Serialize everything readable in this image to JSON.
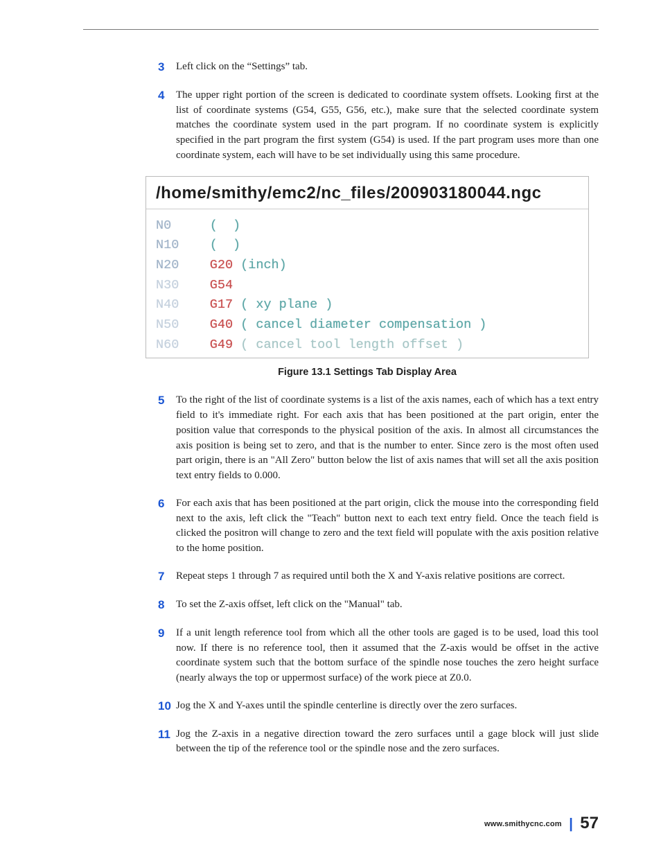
{
  "steps_top": [
    {
      "num": "3",
      "text": "Left click on the “Settings” tab."
    },
    {
      "num": "4",
      "text": "The upper right portion of the screen is dedicated to coordinate system offsets. Looking first at the list of coordinate systems (G54, G55, G56, etc.), make sure that the selected coordinate system matches the coordinate system used in the part program. If no coordinate system is explicitly specified in the part program the first system (G54) is used. If the part program uses more than one coordinate system, each will have to be set individually using this same procedure."
    }
  ],
  "figure": {
    "path_title": "/home/smithy/emc2/nc_files/200903180044.ngc",
    "caption": "Figure 13.1 Settings Tab Display Area",
    "code": [
      {
        "n": "N0",
        "n_class": "nline",
        "g": "",
        "c": "(  )",
        "c_class": "comment"
      },
      {
        "n": "N10",
        "n_class": "nline",
        "g": "",
        "c": "(  )",
        "c_class": "comment"
      },
      {
        "n": "N20",
        "n_class": "nline",
        "g": "G20",
        "c": " (inch)",
        "c_class": "comment"
      },
      {
        "n": "N30",
        "n_class": "nline-fade",
        "g": "G54",
        "c": "",
        "c_class": "comment"
      },
      {
        "n": "N40",
        "n_class": "nline-fade",
        "g": "G17",
        "c": " ( xy plane )",
        "c_class": "comment"
      },
      {
        "n": "N50",
        "n_class": "nline-fade",
        "g": "G40",
        "c": " ( cancel diameter compensation )",
        "c_class": "comment"
      },
      {
        "n": "N60",
        "n_class": "nline-fade",
        "g": "G49",
        "c": " ( cancel tool length offset )",
        "c_class": "comment-fade"
      }
    ]
  },
  "steps_bottom": [
    {
      "num": "5",
      "text": "To the right of the list of coordinate systems is a list of the axis names, each of which has a text entry field to it's immediate right. For each axis that has been positioned at the part origin, enter the position value that corresponds to the physical position of the axis. In almost all circumstances the axis position is being set to zero, and that is the number to enter. Since zero is the most often used part origin, there is an \"All Zero\" button below the list of axis names that will set all the axis position text entry fields to 0.000."
    },
    {
      "num": "6",
      "text": "For each axis that has been positioned at the part origin, click the mouse into the corresponding field next to the axis, left click the \"Teach\" button next to each text entry field.  Once the teach field is clicked the positron will change to zero and the text field will populate with the axis position relative to the home position."
    },
    {
      "num": "7",
      "text": "Repeat steps 1 through 7 as required until both the X and Y-axis relative positions are correct."
    },
    {
      "num": "8",
      "text": "To set the Z-axis offset, left click on the \"Manual\" tab."
    },
    {
      "num": "9",
      "text": "If a unit length reference tool from which all the other tools are gaged is to be used, load this tool now. If there is no reference tool, then it assumed that the Z-axis would be offset in the active coordinate system such that the bottom surface of the spindle nose touches the zero height surface (nearly always the top or uppermost surface) of the work piece at Z0.0."
    },
    {
      "num": "10",
      "text": "Jog the X and Y-axes until the spindle centerline is directly over the zero surfaces."
    },
    {
      "num": "11",
      "text": "Jog the Z-axis in a negative direction toward the zero surfaces until a gage block will just slide between the tip of the reference tool or the spindle nose and the zero surfaces."
    }
  ],
  "footer": {
    "url": "www.smithycnc.com",
    "separator": "|",
    "page": "57"
  },
  "colors": {
    "step_number": "#1b56d3",
    "gcode": "#c74a4a",
    "comment": "#5aa5a5",
    "nline": "#9fb2c7",
    "body_text": "#222222"
  }
}
